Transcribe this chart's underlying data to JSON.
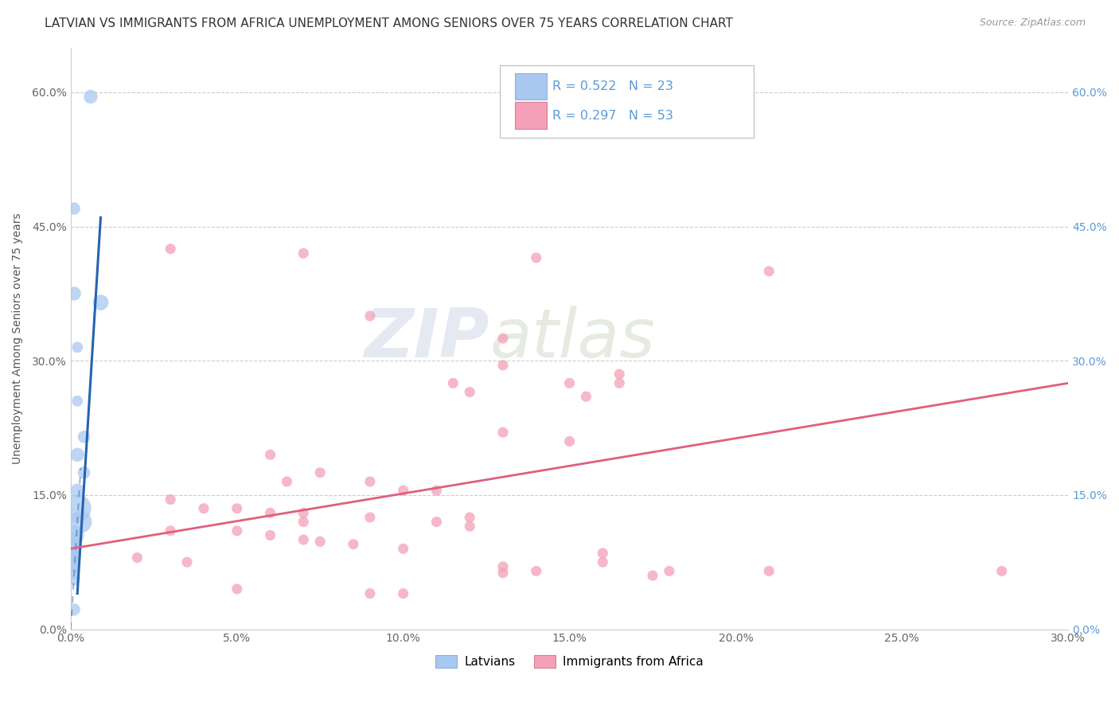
{
  "title": "LATVIAN VS IMMIGRANTS FROM AFRICA UNEMPLOYMENT AMONG SENIORS OVER 75 YEARS CORRELATION CHART",
  "source": "Source: ZipAtlas.com",
  "ylabel": "Unemployment Among Seniors over 75 years",
  "xlim": [
    0.0,
    0.3
  ],
  "ylim": [
    0.0,
    0.65
  ],
  "xticks": [
    0.0,
    0.05,
    0.1,
    0.15,
    0.2,
    0.25,
    0.3
  ],
  "yticks": [
    0.0,
    0.15,
    0.3,
    0.45,
    0.6
  ],
  "watermark_zip": "ZIP",
  "watermark_atlas": "atlas",
  "latvian_points": [
    [
      0.006,
      0.595
    ],
    [
      0.001,
      0.47
    ],
    [
      0.001,
      0.375
    ],
    [
      0.009,
      0.365
    ],
    [
      0.002,
      0.315
    ],
    [
      0.002,
      0.255
    ],
    [
      0.004,
      0.215
    ],
    [
      0.002,
      0.195
    ],
    [
      0.004,
      0.175
    ],
    [
      0.002,
      0.155
    ],
    [
      0.002,
      0.135
    ],
    [
      0.003,
      0.12
    ],
    [
      0.001,
      0.105
    ],
    [
      0.001,
      0.1
    ],
    [
      0.001,
      0.092
    ],
    [
      0.001,
      0.088
    ],
    [
      0.001,
      0.082
    ],
    [
      0.001,
      0.078
    ],
    [
      0.001,
      0.072
    ],
    [
      0.001,
      0.068
    ],
    [
      0.001,
      0.062
    ],
    [
      0.001,
      0.055
    ],
    [
      0.001,
      0.022
    ]
  ],
  "latvian_sizes": [
    35,
    28,
    35,
    45,
    22,
    22,
    28,
    35,
    28,
    35,
    140,
    90,
    70,
    55,
    45,
    35,
    35,
    28,
    28,
    22,
    22,
    22,
    28
  ],
  "africa_points": [
    [
      0.03,
      0.425
    ],
    [
      0.07,
      0.42
    ],
    [
      0.14,
      0.415
    ],
    [
      0.21,
      0.4
    ],
    [
      0.09,
      0.35
    ],
    [
      0.13,
      0.325
    ],
    [
      0.13,
      0.295
    ],
    [
      0.115,
      0.275
    ],
    [
      0.15,
      0.275
    ],
    [
      0.12,
      0.265
    ],
    [
      0.155,
      0.26
    ],
    [
      0.165,
      0.285
    ],
    [
      0.165,
      0.275
    ],
    [
      0.13,
      0.22
    ],
    [
      0.15,
      0.21
    ],
    [
      0.06,
      0.195
    ],
    [
      0.075,
      0.175
    ],
    [
      0.065,
      0.165
    ],
    [
      0.09,
      0.165
    ],
    [
      0.1,
      0.155
    ],
    [
      0.11,
      0.155
    ],
    [
      0.03,
      0.145
    ],
    [
      0.04,
      0.135
    ],
    [
      0.05,
      0.135
    ],
    [
      0.06,
      0.13
    ],
    [
      0.07,
      0.13
    ],
    [
      0.07,
      0.12
    ],
    [
      0.09,
      0.125
    ],
    [
      0.12,
      0.125
    ],
    [
      0.11,
      0.12
    ],
    [
      0.12,
      0.115
    ],
    [
      0.03,
      0.11
    ],
    [
      0.05,
      0.11
    ],
    [
      0.06,
      0.105
    ],
    [
      0.07,
      0.1
    ],
    [
      0.075,
      0.098
    ],
    [
      0.085,
      0.095
    ],
    [
      0.1,
      0.09
    ],
    [
      0.16,
      0.085
    ],
    [
      0.02,
      0.08
    ],
    [
      0.035,
      0.075
    ],
    [
      0.16,
      0.075
    ],
    [
      0.13,
      0.07
    ],
    [
      0.14,
      0.065
    ],
    [
      0.13,
      0.063
    ],
    [
      0.18,
      0.065
    ],
    [
      0.21,
      0.065
    ],
    [
      0.175,
      0.06
    ],
    [
      0.05,
      0.045
    ],
    [
      0.09,
      0.04
    ],
    [
      0.1,
      0.04
    ],
    [
      0.28,
      0.065
    ]
  ],
  "africa_size": 90,
  "latvian_color": "#a8c8f0",
  "africa_color": "#f4a0b8",
  "latvian_line_color": "#2563b0",
  "africa_line_color": "#e0607a",
  "latvian_trendline_solid": [
    [
      0.002,
      0.04
    ],
    [
      0.009,
      0.46
    ]
  ],
  "latvian_trendline_dash": [
    [
      0.0,
      0.0
    ],
    [
      0.003,
      0.18
    ]
  ],
  "africa_trendline": [
    [
      0.0,
      0.09
    ],
    [
      0.3,
      0.275
    ]
  ],
  "background_color": "#ffffff",
  "grid_color": "#cccccc",
  "title_fontsize": 11,
  "source_fontsize": 9,
  "ylabel_fontsize": 10,
  "tick_fontsize": 10,
  "tick_color_left": "#666666",
  "tick_color_right": "#5b9bd5"
}
